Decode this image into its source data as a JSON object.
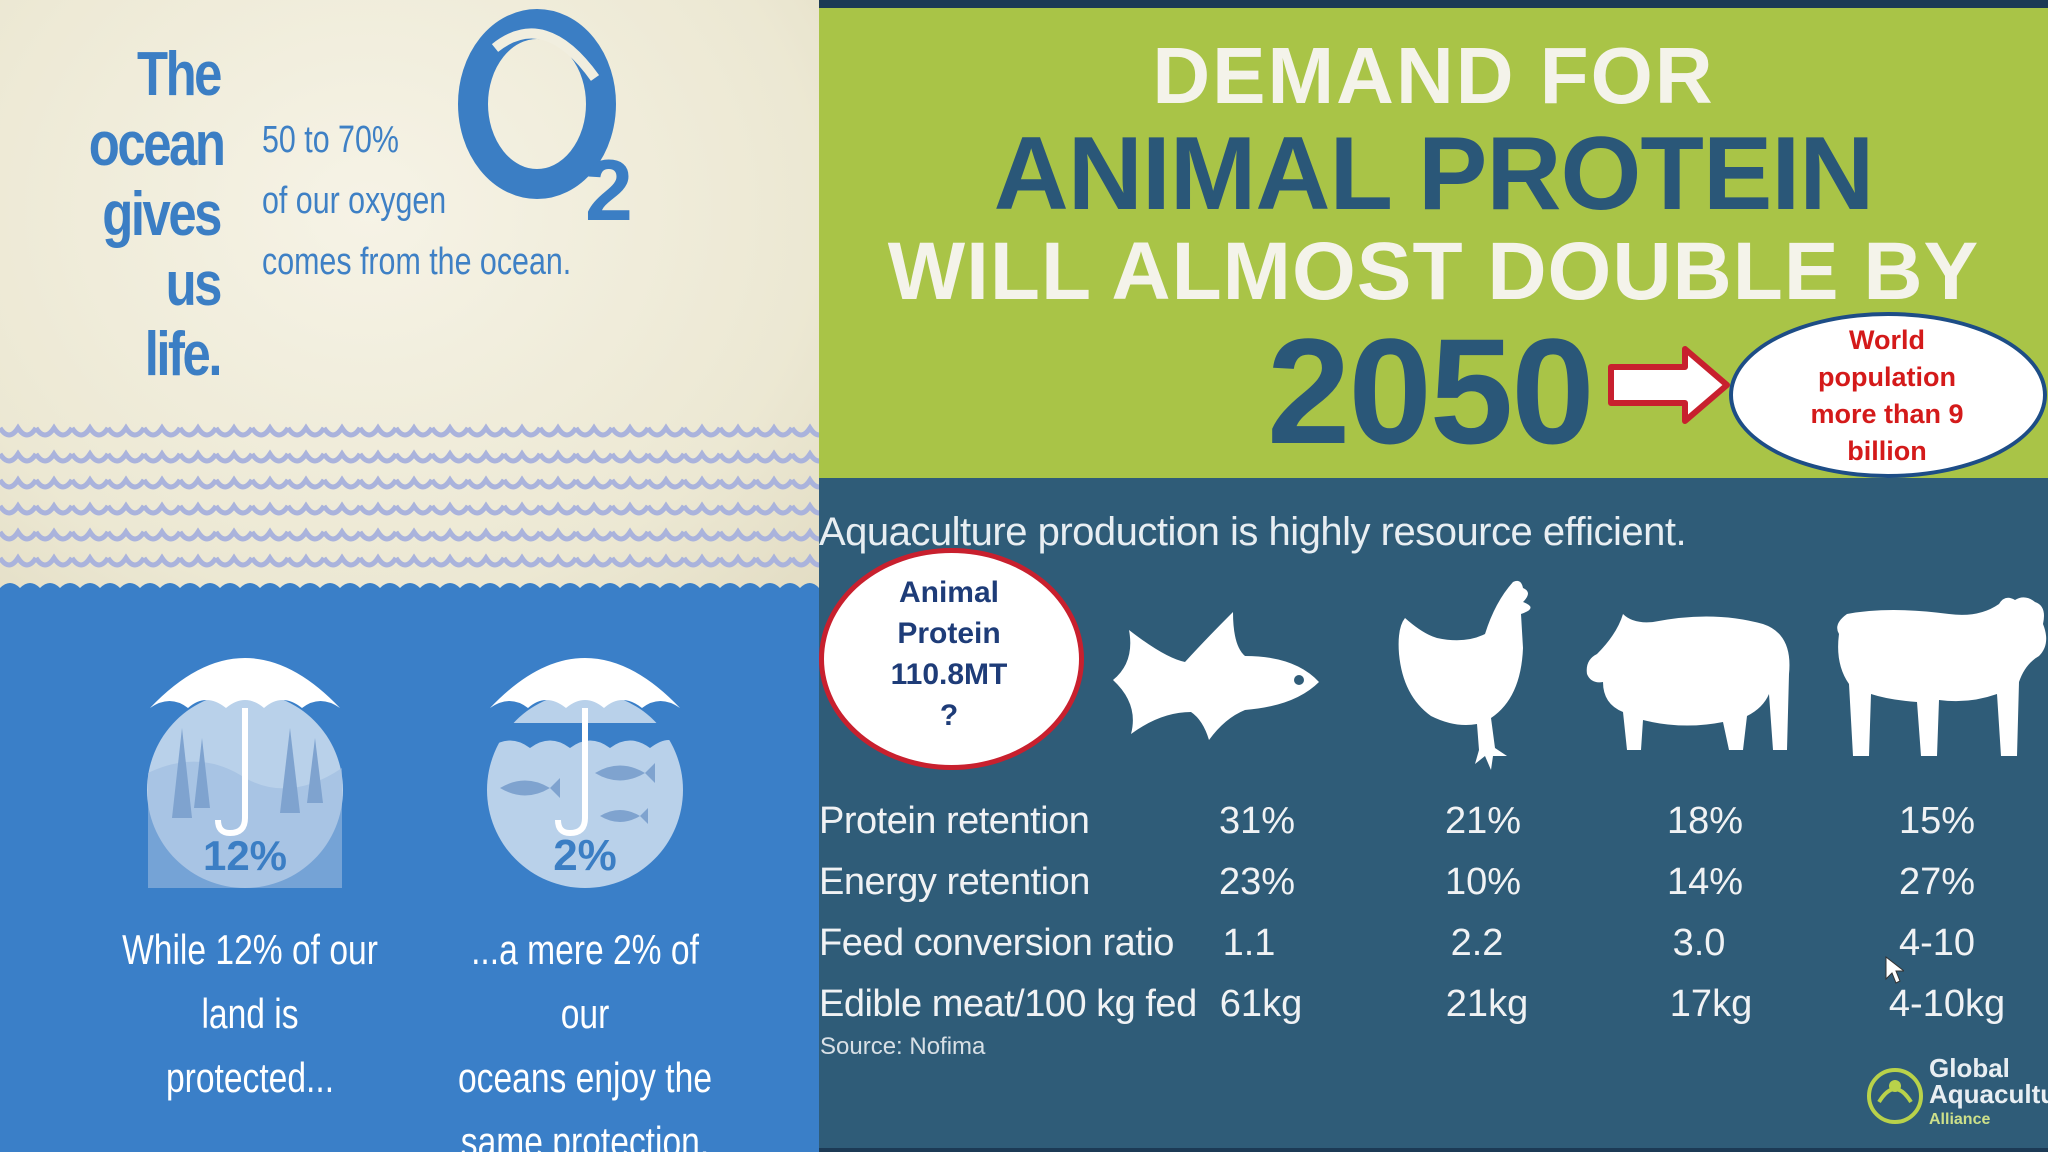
{
  "left": {
    "title_lines": [
      "The",
      "ocean",
      "gives",
      "us",
      "life."
    ],
    "oxygen_lines": [
      "50 to 70%",
      "of our oxygen",
      "comes from the ocean."
    ],
    "o2_symbol": "O",
    "o2_subscript": "2",
    "land_pct": "12%",
    "ocean_pct": "2%",
    "land_caption": [
      "While 12% of our",
      "land is protected..."
    ],
    "ocean_caption": [
      "...a mere 2% of our",
      "oceans enjoy the",
      "same protection."
    ],
    "colors": {
      "blue": "#3a7fc8",
      "cream": "#f1eedf",
      "wave": "#aab3dc"
    }
  },
  "right": {
    "headline": [
      "DEMAND FOR",
      "ANIMAL PROTEIN",
      "WILL ALMOST DOUBLE BY",
      "2050"
    ],
    "world_note": [
      "World",
      "population",
      "more than 9",
      "billion"
    ],
    "subtitle": "Aquaculture production is highly resource efficient.",
    "animal_protein_note": [
      "Animal",
      "Protein",
      "110.8MT",
      "?"
    ],
    "animals": [
      "fish",
      "chicken",
      "pig",
      "cow"
    ],
    "rows": [
      {
        "label": "Protein retention",
        "values": [
          "31%",
          "21%",
          "18%",
          "15%"
        ]
      },
      {
        "label": "Energy retention",
        "values": [
          "23%",
          "10%",
          "14%",
          "27%"
        ]
      },
      {
        "label": "Feed conversion ratio",
        "values": [
          "1.1",
          "2.2",
          "3.0",
          "4-10"
        ]
      },
      {
        "label": "Edible meat/100 kg fed",
        "values": [
          "61kg",
          "21kg",
          "17kg",
          "4-10kg"
        ]
      }
    ],
    "source": "Source: Nofima",
    "logo": [
      "Global",
      "Aquaculture",
      "Alliance"
    ],
    "colors": {
      "green": "#a9c447",
      "navy": "#2f5c78",
      "headline_blue": "#2a5778",
      "red": "#c8202e"
    }
  }
}
